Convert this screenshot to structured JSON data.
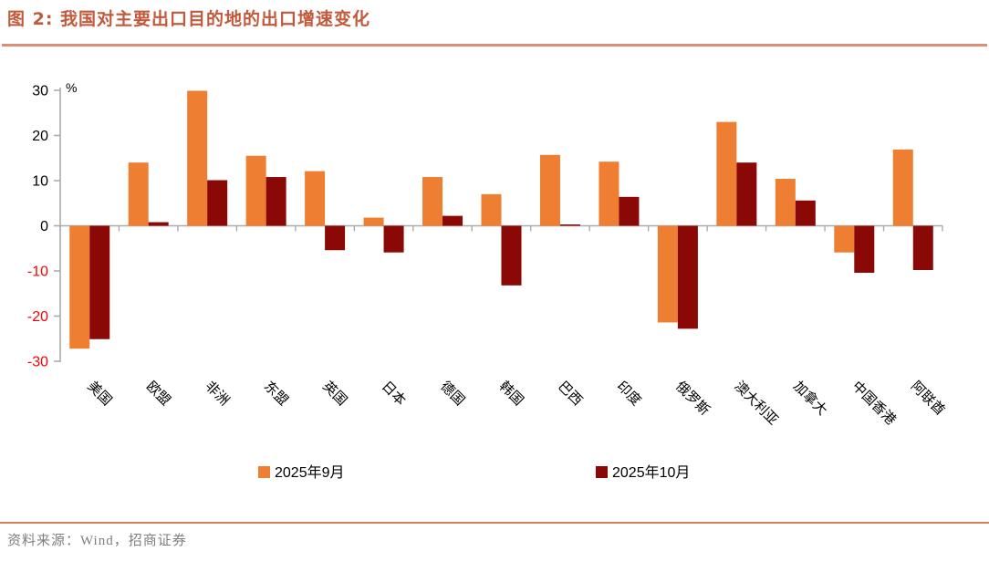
{
  "header": {
    "title": "图 2: 我国对主要出口目的地的出口增速变化"
  },
  "footer": {
    "source": "资料来源：Wind，招商证券"
  },
  "chart_data": {
    "type": "bar",
    "title": "图 2: 我国对主要出口目的地的出口增速变化",
    "unit_label": "%",
    "categories": [
      "美国",
      "欧盟",
      "非洲",
      "东盟",
      "英国",
      "日本",
      "德国",
      "韩国",
      "巴西",
      "印度",
      "俄罗斯",
      "澳大利亚",
      "加拿大",
      "中国香港",
      "阿联酋"
    ],
    "series": [
      {
        "name": "2025年9月",
        "color": "#EE7E32",
        "values": [
          -27.2,
          14.0,
          29.9,
          15.5,
          12.1,
          1.8,
          10.8,
          7.0,
          15.7,
          14.2,
          -21.4,
          23.0,
          10.4,
          -5.9,
          16.9
        ]
      },
      {
        "name": "2025年10月",
        "color": "#8A0906",
        "values": [
          -25.1,
          0.8,
          10.1,
          10.8,
          -5.4,
          -5.9,
          2.2,
          -13.2,
          0.3,
          6.4,
          -22.8,
          14.0,
          5.6,
          -10.4,
          -9.8
        ]
      }
    ],
    "ylim": [
      -30,
      30
    ],
    "yticks": [
      30,
      20,
      10,
      0,
      -10,
      -20,
      -30
    ],
    "grid": false,
    "legend_position": "bottom",
    "tick_label_color_positive": "#000000",
    "tick_label_color_negative": "#FF0000",
    "axis_color": "#ABABAB"
  }
}
